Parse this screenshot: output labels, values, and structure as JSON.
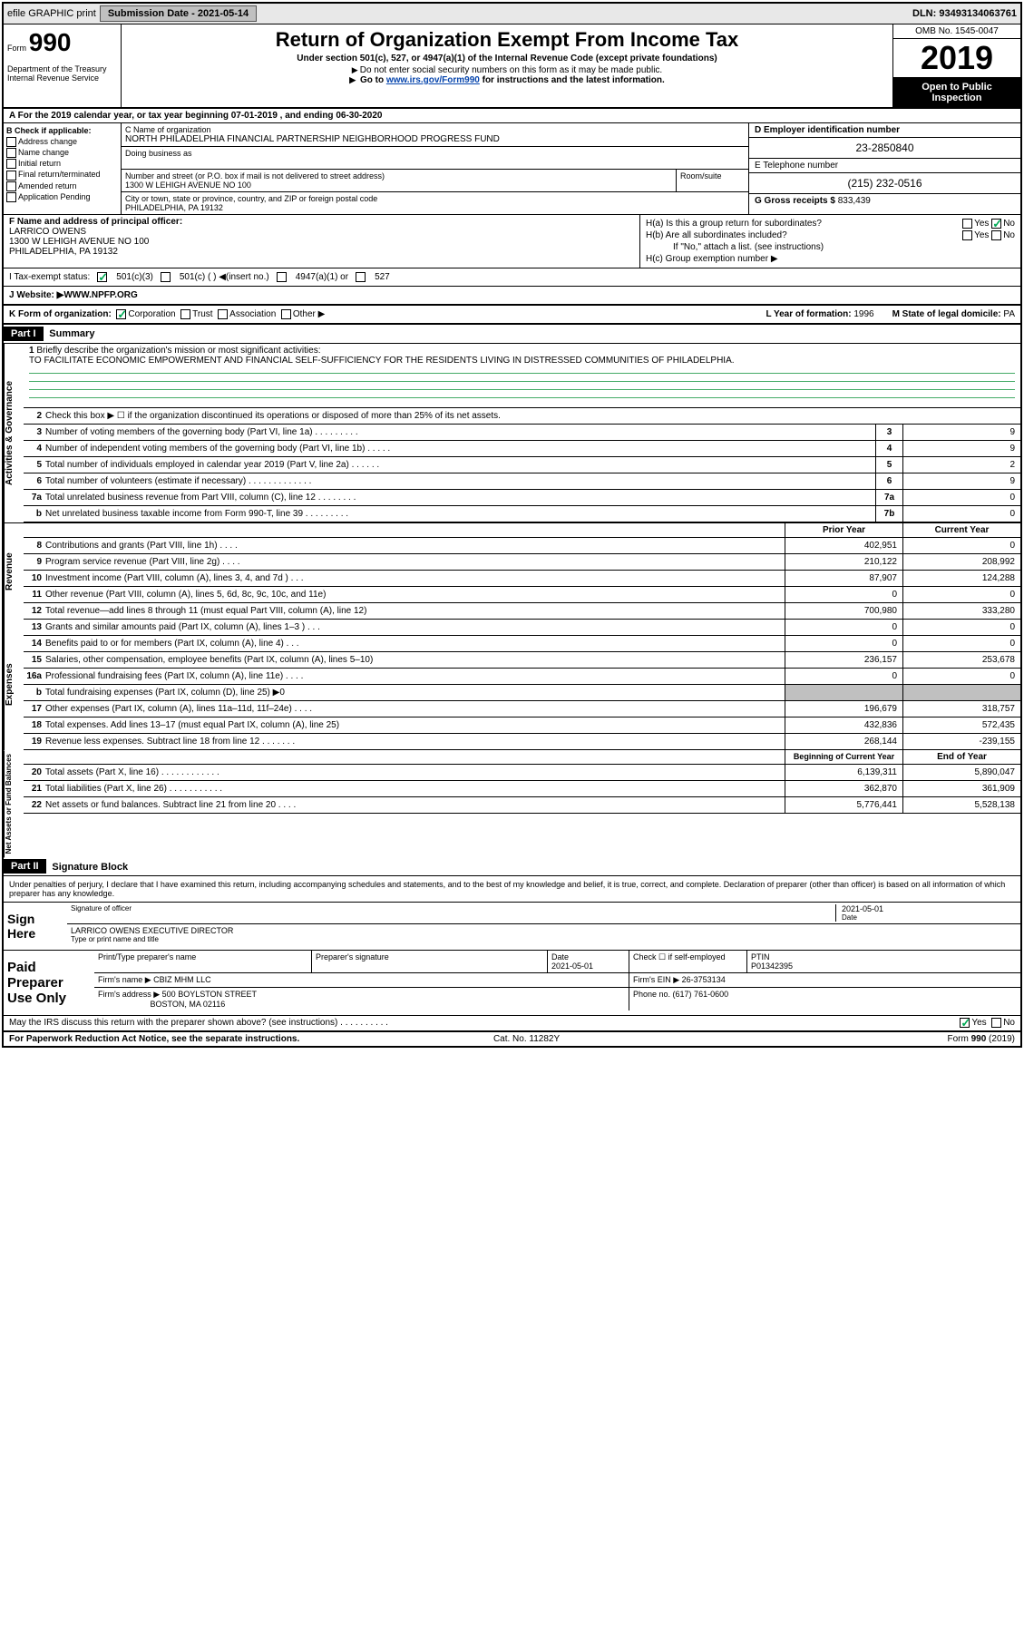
{
  "topbar": {
    "efile": "efile GRAPHIC print",
    "submission_label": "Submission Date - ",
    "submission_date": "2021-05-14",
    "dln_label": "DLN: ",
    "dln": "93493134063761"
  },
  "header": {
    "form_label": "Form",
    "form_num": "990",
    "dept": "Department of the Treasury\nInternal Revenue Service",
    "title": "Return of Organization Exempt From Income Tax",
    "subtitle": "Under section 501(c), 527, or 4947(a)(1) of the Internal Revenue Code (except private foundations)",
    "note1": "Do not enter social security numbers on this form as it may be made public.",
    "note2_pre": "Go to ",
    "note2_link": "www.irs.gov/Form990",
    "note2_post": " for instructions and the latest information.",
    "omb": "OMB No. 1545-0047",
    "year": "2019",
    "open": "Open to Public Inspection"
  },
  "line_a": "A For the 2019 calendar year, or tax year beginning 07-01-2019    , and ending 06-30-2020",
  "section_b": {
    "label": "B Check if applicable:",
    "opts": [
      "Address change",
      "Name change",
      "Initial return",
      "Final return/terminated",
      "Amended return",
      "Application Pending"
    ]
  },
  "section_c": {
    "name_label": "C Name of organization",
    "org_name": "NORTH PHILADELPHIA FINANCIAL PARTNERSHIP NEIGHBORHOOD PROGRESS FUND",
    "dba_label": "Doing business as",
    "addr_label": "Number and street (or P.O. box if mail is not delivered to street address)",
    "addr": "1300 W LEHIGH AVENUE NO 100",
    "room_label": "Room/suite",
    "city_label": "City or town, state or province, country, and ZIP or foreign postal code",
    "city": "PHILADELPHIA, PA  19132"
  },
  "section_d": {
    "label": "D Employer identification number",
    "ein": "23-2850840"
  },
  "section_e": {
    "label": "E Telephone number",
    "phone": "(215) 232-0516"
  },
  "section_g": {
    "label": "G Gross receipts $ ",
    "amount": "833,439"
  },
  "section_f": {
    "label": "F  Name and address of principal officer:",
    "name": "LARRICO OWENS",
    "addr1": "1300 W LEHIGH AVENUE NO 100",
    "addr2": "PHILADELPHIA, PA  19132"
  },
  "section_h": {
    "ha": "H(a)  Is this a group return for subordinates?",
    "hb": "H(b)  Are all subordinates included?",
    "hb_note": "If \"No,\" attach a list. (see instructions)",
    "hc": "H(c)  Group exemption number ▶",
    "yes": "Yes",
    "no": "No"
  },
  "tax_status": {
    "label": "I  Tax-exempt status:",
    "o1": "501(c)(3)",
    "o2": "501(c) (   ) ◀(insert no.)",
    "o3": "4947(a)(1) or",
    "o4": "527"
  },
  "website": {
    "label": "J  Website: ▶ ",
    "url": "WWW.NPFP.ORG"
  },
  "k_row": {
    "label": "K Form of organization:",
    "opts": [
      "Corporation",
      "Trust",
      "Association",
      "Other ▶"
    ],
    "l": "L Year of formation: ",
    "l_val": "1996",
    "m": "M State of legal domicile: ",
    "m_val": "PA"
  },
  "part1": {
    "label": "Part I",
    "title": "Summary"
  },
  "mission": {
    "num": "1",
    "label": "Briefly describe the organization's mission or most significant activities:",
    "text": "TO FACILITATE ECONOMIC EMPOWERMENT AND FINANCIAL SELF-SUFFICIENCY FOR THE RESIDENTS LIVING IN DISTRESSED COMMUNITIES OF PHILADELPHIA."
  },
  "gov_lines": [
    {
      "num": "2",
      "text": "Check this box ▶ ☐  if the organization discontinued its operations or disposed of more than 25% of its net assets.",
      "box": "",
      "val": ""
    },
    {
      "num": "3",
      "text": "Number of voting members of the governing body (Part VI, line 1a)  .    .    .    .    .    .    .    .    .",
      "box": "3",
      "val": "9"
    },
    {
      "num": "4",
      "text": "Number of independent voting members of the governing body (Part VI, line 1b)  .    .    .    .    .",
      "box": "4",
      "val": "9"
    },
    {
      "num": "5",
      "text": "Total number of individuals employed in calendar year 2019 (Part V, line 2a)  .    .    .    .    .    .",
      "box": "5",
      "val": "2"
    },
    {
      "num": "6",
      "text": "Total number of volunteers (estimate if necessary)    .    .    .    .    .    .    .    .    .    .    .    .    .",
      "box": "6",
      "val": "9"
    },
    {
      "num": "7a",
      "text": "Total unrelated business revenue from Part VIII, column (C), line 12  .    .    .    .    .    .    .    .",
      "box": "7a",
      "val": "0"
    },
    {
      "num": "b",
      "text": "Net unrelated business taxable income from Form 990-T, line 39    .    .    .    .    .    .    .    .    .",
      "box": "7b",
      "val": "0"
    }
  ],
  "col_headers": {
    "prior": "Prior Year",
    "current": "Current Year"
  },
  "rev_lines": [
    {
      "num": "8",
      "text": "Contributions and grants (Part VIII, line 1h)    .    .    .    .",
      "prior": "402,951",
      "current": "0"
    },
    {
      "num": "9",
      "text": "Program service revenue (Part VIII, line 2g)    .    .    .    .",
      "prior": "210,122",
      "current": "208,992"
    },
    {
      "num": "10",
      "text": "Investment income (Part VIII, column (A), lines 3, 4, and 7d )    .    .    .",
      "prior": "87,907",
      "current": "124,288"
    },
    {
      "num": "11",
      "text": "Other revenue (Part VIII, column (A), lines 5, 6d, 8c, 9c, 10c, and 11e)",
      "prior": "0",
      "current": "0"
    },
    {
      "num": "12",
      "text": "Total revenue—add lines 8 through 11 (must equal Part VIII, column (A), line 12)",
      "prior": "700,980",
      "current": "333,280"
    }
  ],
  "exp_lines": [
    {
      "num": "13",
      "text": "Grants and similar amounts paid (Part IX, column (A), lines 1–3 )  .    .    .",
      "prior": "0",
      "current": "0"
    },
    {
      "num": "14",
      "text": "Benefits paid to or for members (Part IX, column (A), line 4)  .    .    .",
      "prior": "0",
      "current": "0"
    },
    {
      "num": "15",
      "text": "Salaries, other compensation, employee benefits (Part IX, column (A), lines 5–10)",
      "prior": "236,157",
      "current": "253,678"
    },
    {
      "num": "16a",
      "text": "Professional fundraising fees (Part IX, column (A), line 11e)  .    .    .    .",
      "prior": "0",
      "current": "0"
    },
    {
      "num": "b",
      "text": "Total fundraising expenses (Part IX, column (D), line 25) ▶0",
      "prior": "",
      "current": "",
      "shaded": true
    },
    {
      "num": "17",
      "text": "Other expenses (Part IX, column (A), lines 11a–11d, 11f–24e)  .    .    .    .",
      "prior": "196,679",
      "current": "318,757"
    },
    {
      "num": "18",
      "text": "Total expenses. Add lines 13–17 (must equal Part IX, column (A), line 25)",
      "prior": "432,836",
      "current": "572,435"
    },
    {
      "num": "19",
      "text": "Revenue less expenses. Subtract line 18 from line 12  .    .    .    .    .    .    .",
      "prior": "268,144",
      "current": "-239,155"
    }
  ],
  "net_headers": {
    "begin": "Beginning of Current Year",
    "end": "End of Year"
  },
  "net_lines": [
    {
      "num": "20",
      "text": "Total assets (Part X, line 16)  .    .    .    .    .    .    .    .    .    .    .    .",
      "prior": "6,139,311",
      "current": "5,890,047"
    },
    {
      "num": "21",
      "text": "Total liabilities (Part X, line 26)  .    .    .    .    .    .    .    .    .    .    .",
      "prior": "362,870",
      "current": "361,909"
    },
    {
      "num": "22",
      "text": "Net assets or fund balances. Subtract line 21 from line 20  .    .    .    .",
      "prior": "5,776,441",
      "current": "5,528,138"
    }
  ],
  "vert_labels": {
    "gov": "Activities & Governance",
    "rev": "Revenue",
    "exp": "Expenses",
    "net": "Net Assets or Fund Balances"
  },
  "part2": {
    "label": "Part II",
    "title": "Signature Block",
    "declaration": "Under penalties of perjury, I declare that I have examined this return, including accompanying schedules and statements, and to the best of my knowledge and belief, it is true, correct, and complete. Declaration of preparer (other than officer) is based on all information of which preparer has any knowledge."
  },
  "sign": {
    "label": "Sign Here",
    "sig_label": "Signature of officer",
    "date_label": "Date",
    "date": "2021-05-01",
    "name": "LARRICO OWENS  EXECUTIVE DIRECTOR",
    "name_label": "Type or print name and title"
  },
  "paid": {
    "label": "Paid Preparer Use Only",
    "h1": "Print/Type preparer's name",
    "h2": "Preparer's signature",
    "h3": "Date",
    "date": "2021-05-01",
    "h4": "Check ☐  if self-employed",
    "h5": "PTIN",
    "ptin": "P01342395",
    "firm_label": "Firm's name      ▶",
    "firm": "CBIZ MHM LLC",
    "ein_label": "Firm's EIN ▶",
    "ein": "26-3753134",
    "addr_label": "Firm's address ▶",
    "addr1": "500 BOYLSTON STREET",
    "addr2": "BOSTON, MA  02116",
    "phone_label": "Phone no. ",
    "phone": "(617) 761-0600"
  },
  "footer": {
    "discuss": "May the IRS discuss this return with the preparer shown above? (see instructions)    .    .    .    .    .    .    .    .    .    .",
    "paperwork": "For Paperwork Reduction Act Notice, see the separate instructions.",
    "cat": "Cat. No. 11282Y",
    "form": "Form 990 (2019)"
  }
}
